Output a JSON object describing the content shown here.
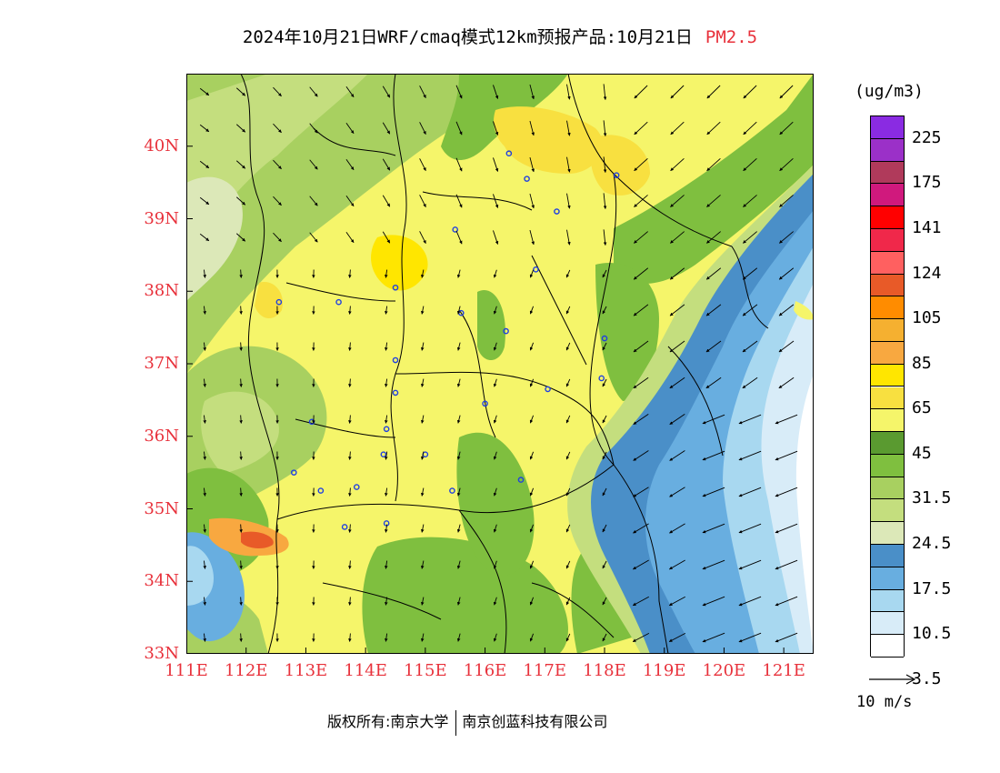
{
  "title": {
    "main": "2024年10月21日WRF/cmaq模式12km预报产品:10月21日",
    "variable": "PM2.5"
  },
  "axes": {
    "lat_labels": [
      "40N",
      "39N",
      "38N",
      "37N",
      "36N",
      "35N",
      "34N",
      "33N"
    ],
    "lat_values": [
      40,
      39,
      38,
      37,
      36,
      35,
      34,
      33
    ],
    "lon_labels": [
      "111E",
      "112E",
      "113E",
      "114E",
      "115E",
      "116E",
      "117E",
      "118E",
      "119E",
      "120E",
      "121E"
    ],
    "lon_values": [
      111,
      112,
      113,
      114,
      115,
      116,
      117,
      118,
      119,
      120,
      121
    ],
    "lon_range": [
      111,
      121.5
    ],
    "lat_range": [
      33,
      41
    ]
  },
  "colorbar": {
    "unit": "(ug/m3)",
    "labels": [
      "225",
      "175",
      "141",
      "124",
      "105",
      "85",
      "65",
      "45",
      "31.5",
      "24.5",
      "17.5",
      "10.5",
      "3.5"
    ],
    "colors": [
      "#8a2be2",
      "#9b30c8",
      "#b03a5b",
      "#d0197d",
      "#ff0000",
      "#f0284a",
      "#ff6060",
      "#e85a28",
      "#ff8c00",
      "#f5b030",
      "#f8a840",
      "#ffe600",
      "#f8e040",
      "#f5f56a",
      "#5a9a30",
      "#7fbf3f",
      "#a8d060",
      "#c4de7e",
      "#dce8b8",
      "#4a8fc8",
      "#68aee0",
      "#a8d8f0",
      "#d8ecf8",
      "#ffffff"
    ]
  },
  "wind": {
    "reference_label": "10 m/s"
  },
  "cities": [
    [
      116.4,
      39.9
    ],
    [
      117.2,
      39.1
    ],
    [
      118.2,
      39.6
    ],
    [
      116.7,
      39.55
    ],
    [
      115.5,
      38.85
    ],
    [
      114.5,
      38.05
    ],
    [
      116.85,
      38.3
    ],
    [
      112.55,
      37.85
    ],
    [
      113.55,
      37.85
    ],
    [
      115.6,
      37.7
    ],
    [
      116.35,
      37.45
    ],
    [
      118.0,
      37.35
    ],
    [
      114.5,
      37.05
    ],
    [
      117.05,
      36.65
    ],
    [
      117.95,
      36.8
    ],
    [
      114.5,
      36.6
    ],
    [
      116.0,
      36.45
    ],
    [
      113.1,
      36.2
    ],
    [
      114.35,
      36.1
    ],
    [
      114.3,
      35.75
    ],
    [
      115.0,
      35.75
    ],
    [
      112.8,
      35.5
    ],
    [
      113.85,
      35.3
    ],
    [
      113.25,
      35.25
    ],
    [
      115.45,
      35.25
    ],
    [
      116.6,
      35.4
    ],
    [
      114.35,
      34.8
    ],
    [
      113.65,
      34.75
    ]
  ],
  "footer": {
    "copyright": "版权所有:南京大学",
    "company": "南京创蓝科技有限公司"
  }
}
